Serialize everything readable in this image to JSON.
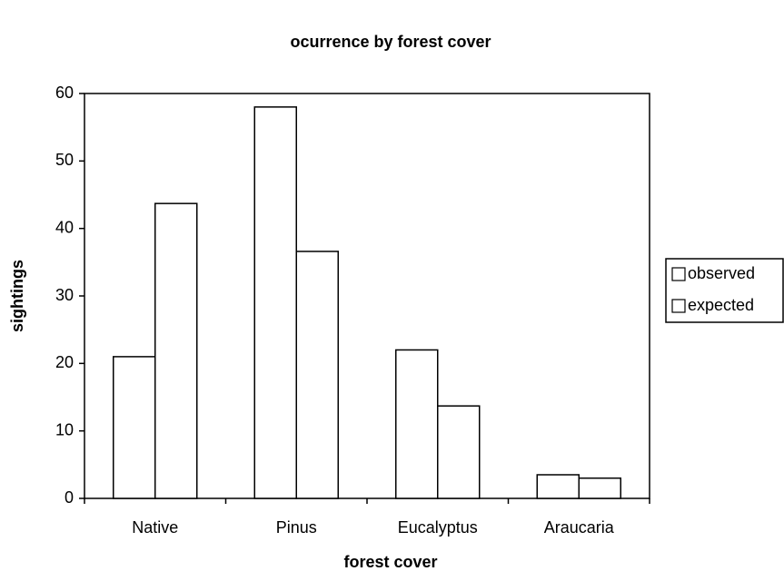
{
  "chart_data": {
    "type": "bar",
    "title": "ocurrence by forest cover",
    "x_label": "forest cover",
    "y_label": "sightings",
    "categories": [
      "Native",
      "Pinus",
      "Eucalyptus",
      "Araucaria"
    ],
    "series": [
      {
        "name": "observed",
        "color": "#ffffff",
        "values": [
          21,
          58,
          22,
          3.5
        ]
      },
      {
        "name": "expected",
        "color": "#ffffff",
        "values": [
          43.7,
          36.6,
          13.7,
          3
        ]
      }
    ],
    "ylim": [
      0,
      60
    ],
    "yticks": [
      0,
      10,
      20,
      30,
      40,
      50,
      60
    ],
    "legend": "right"
  }
}
